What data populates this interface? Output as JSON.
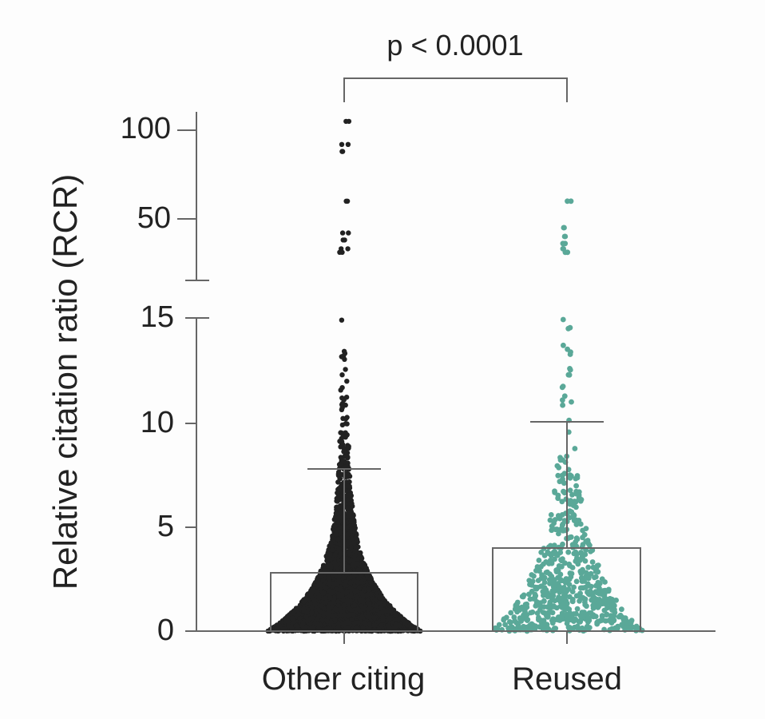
{
  "chart_data": {
    "type": "scatter",
    "subtype": "dot-plot with mean bar and SD whisker (broken y-axis)",
    "title": "",
    "ylabel": "Relative citation ratio (RCR)",
    "xlabel": "",
    "categories": [
      "Other citing",
      "Reused"
    ],
    "y_axis": {
      "segments": [
        {
          "range": [
            0,
            15
          ],
          "ticks": [
            0,
            5,
            10,
            15
          ]
        },
        {
          "range": [
            15,
            100
          ],
          "ticks": [
            50,
            100
          ]
        }
      ],
      "break": true,
      "tick_labels": [
        "0",
        "5",
        "10",
        "15",
        "50",
        "100"
      ]
    },
    "series": [
      {
        "name": "Other citing",
        "color": "#222222",
        "mean": 2.8,
        "sd_upper": 7.8,
        "max": 105,
        "approx_n": "thousands",
        "outliers": [
          105,
          92,
          88,
          60,
          42,
          38,
          33,
          31
        ]
      },
      {
        "name": "Reused",
        "color": "#5aa898",
        "mean": 4.0,
        "sd_upper": 10.1,
        "max": 60,
        "approx_n": "hundreds",
        "outliers": [
          60,
          45,
          40,
          36,
          33,
          31
        ]
      }
    ],
    "annotation": {
      "text": "p  < 0.0001",
      "bracket_between": [
        "Other citing",
        "Reused"
      ]
    },
    "grid": false,
    "legend": false
  },
  "labels": {
    "ylabel": "Relative citation ratio (RCR)",
    "pvalue": "p  < 0.0001",
    "ticks": {
      "t0": "0",
      "t5": "5",
      "t10": "10",
      "t15": "15",
      "t50": "50",
      "t100": "100"
    },
    "x": {
      "other": "Other citing",
      "reused": "Reused"
    }
  }
}
